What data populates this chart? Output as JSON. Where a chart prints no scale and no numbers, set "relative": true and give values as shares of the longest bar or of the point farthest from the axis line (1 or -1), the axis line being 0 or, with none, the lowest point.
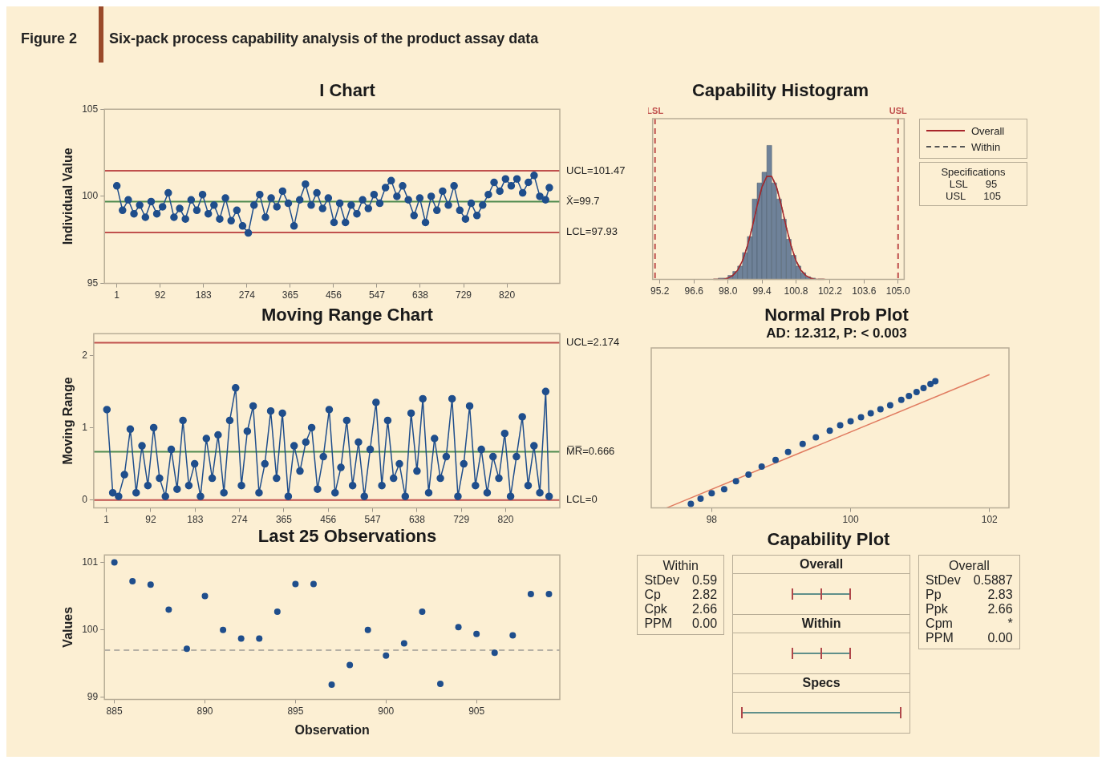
{
  "chart_data": [
    {
      "type": "line",
      "title": "I Chart",
      "ylabel": "Individual Value",
      "marker": "circle",
      "annotations": [
        "Figure 2",
        "Six-pack process capability analysis of the product assay data"
      ],
      "xlim": [
        -25,
        931
      ],
      "xticks": [
        1,
        92,
        183,
        274,
        365,
        456,
        547,
        638,
        729,
        820
      ],
      "ylim": [
        95,
        105
      ],
      "yticks": [
        95,
        100,
        105
      ],
      "ref_lines": [
        {
          "axis": "y",
          "value": 101.47,
          "label": "UCL=101.47",
          "color": "#c0504d"
        },
        {
          "axis": "y",
          "value": 99.7,
          "label": "X̄=99.7",
          "color": "#4e8a4e"
        },
        {
          "axis": "y",
          "value": 97.93,
          "label": "LCL=97.93",
          "color": "#c0504d"
        }
      ],
      "series": [
        {
          "color": "#1f4e8c",
          "x": [
            1,
            13,
            25,
            37,
            49,
            61,
            73,
            85,
            97,
            109,
            121,
            133,
            145,
            157,
            169,
            181,
            193,
            205,
            217,
            229,
            241,
            253,
            265,
            277,
            289,
            301,
            313,
            325,
            337,
            349,
            361,
            373,
            385,
            397,
            409,
            421,
            433,
            445,
            457,
            469,
            481,
            493,
            505,
            517,
            529,
            541,
            553,
            565,
            577,
            589,
            601,
            613,
            625,
            637,
            649,
            661,
            673,
            685,
            697,
            709,
            721,
            733,
            745,
            757,
            769,
            781,
            793,
            805,
            817,
            829,
            841,
            853,
            865,
            877,
            889,
            901,
            909
          ],
          "values": [
            100.6,
            99.2,
            99.8,
            99.0,
            99.5,
            98.8,
            99.7,
            99.0,
            99.4,
            100.2,
            98.8,
            99.3,
            98.7,
            99.8,
            99.2,
            100.1,
            99.0,
            99.5,
            98.7,
            99.9,
            98.6,
            99.2,
            98.3,
            97.9,
            99.5,
            100.1,
            98.8,
            99.9,
            99.4,
            100.3,
            99.6,
            98.3,
            99.8,
            100.7,
            99.5,
            100.2,
            99.3,
            99.9,
            98.5,
            99.6,
            98.5,
            99.5,
            99.0,
            99.8,
            99.3,
            100.1,
            99.6,
            100.5,
            100.9,
            100.0,
            100.6,
            99.8,
            98.9,
            99.9,
            98.5,
            100.0,
            99.2,
            100.3,
            99.5,
            100.6,
            99.2,
            98.7,
            99.6,
            98.9,
            99.5,
            100.1,
            100.8,
            100.3,
            101.0,
            100.6,
            101.0,
            100.2,
            100.8,
            101.2,
            100.0,
            99.8,
            100.5
          ]
        }
      ]
    },
    {
      "type": "histogram",
      "title": "Capability Histogram",
      "relative": true,
      "color": "#6f8299",
      "legend": "right",
      "annotations": [
        "Specifications",
        "LSL",
        "95",
        "USL",
        "105"
      ],
      "xlim": [
        94.9,
        105.25
      ],
      "xticks": [
        95.2,
        96.6,
        {
          "value": 98,
          "label": "98.0"
        },
        99.4,
        100.8,
        102.2,
        103.6,
        {
          "value": 105,
          "label": "105.0"
        }
      ],
      "bins": [
        97.6,
        97.8,
        98.0,
        98.2,
        98.4,
        98.6,
        98.8,
        99.0,
        99.2,
        99.4,
        99.6,
        99.8,
        100.0,
        100.2,
        100.4,
        100.6,
        100.8,
        101.0,
        101.2,
        101.4,
        101.6
      ],
      "values": [
        0.01,
        0.01,
        0.03,
        0.06,
        0.1,
        0.2,
        0.32,
        0.6,
        0.72,
        0.8,
        1,
        0.72,
        0.6,
        0.45,
        0.3,
        0.18,
        0.1,
        0.05,
        0.02,
        0.01
      ],
      "ref_lines": [
        {
          "axis": "x",
          "value": 95,
          "label": "LSL",
          "color": "#c0504d",
          "line_style": "dashed"
        },
        {
          "axis": "x",
          "value": 105,
          "label": "USL",
          "color": "#c0504d",
          "line_style": "dashed"
        }
      ],
      "series": [
        {
          "name": "Overall",
          "type": "line",
          "color": "#a8262b",
          "line_style": "solid",
          "x": [
            97.4,
            97.6,
            97.8,
            98.0,
            98.2,
            98.4,
            98.6,
            98.8,
            99.0,
            99.2,
            99.4,
            99.6,
            99.8,
            100.0,
            100.2,
            100.4,
            100.6,
            100.8,
            101.0,
            101.2,
            101.4,
            101.6,
            101.8,
            102.0
          ],
          "values": [
            0,
            0,
            0,
            0.01,
            0.03,
            0.07,
            0.14,
            0.25,
            0.39,
            0.55,
            0.69,
            0.77,
            0.77,
            0.69,
            0.55,
            0.39,
            0.25,
            0.14,
            0.07,
            0.03,
            0.01,
            0,
            0,
            0
          ]
        },
        {
          "name": "Within",
          "type": "line",
          "color": "#555555",
          "line_style": "dashed",
          "x": [
            97.4,
            97.6,
            97.8,
            98.0,
            98.2,
            98.4,
            98.6,
            98.8,
            99.0,
            99.2,
            99.4,
            99.6,
            99.8,
            100.0,
            100.2,
            100.4,
            100.6,
            100.8,
            101.0,
            101.2,
            101.4,
            101.6,
            101.8,
            102.0
          ],
          "values": [
            0,
            0,
            0,
            0.01,
            0.03,
            0.07,
            0.14,
            0.25,
            0.39,
            0.55,
            0.69,
            0.77,
            0.77,
            0.69,
            0.55,
            0.39,
            0.25,
            0.14,
            0.07,
            0.03,
            0.01,
            0,
            0,
            0
          ]
        }
      ]
    },
    {
      "type": "line",
      "title": "Moving Range Chart",
      "ylabel": "Moving Range",
      "marker": "circle",
      "xlim": [
        -25,
        931
      ],
      "xticks": [
        1,
        92,
        183,
        274,
        365,
        456,
        547,
        638,
        729,
        820
      ],
      "ylim": [
        -0.11,
        2.3
      ],
      "yticks": [
        0,
        1,
        2
      ],
      "ref_lines": [
        {
          "axis": "y",
          "value": 2.174,
          "label": "UCL=2.174",
          "color": "#c0504d"
        },
        {
          "axis": "y",
          "value": 0.666,
          "label": "M̅R̅=0.666",
          "color": "#4e8a4e"
        },
        {
          "axis": "y",
          "value": 0,
          "label": "LCL=0",
          "color": "#c0504d"
        }
      ],
      "series": [
        {
          "color": "#1f4e8c",
          "x": [
            2,
            14,
            26,
            38,
            50,
            62,
            74,
            86,
            98,
            110,
            122,
            134,
            146,
            158,
            170,
            182,
            194,
            206,
            218,
            230,
            242,
            254,
            266,
            278,
            290,
            302,
            314,
            326,
            338,
            350,
            362,
            374,
            386,
            398,
            410,
            422,
            434,
            446,
            458,
            470,
            482,
            494,
            506,
            518,
            530,
            542,
            554,
            566,
            578,
            590,
            602,
            614,
            626,
            638,
            650,
            662,
            674,
            686,
            698,
            710,
            722,
            734,
            746,
            758,
            770,
            782,
            794,
            806,
            818,
            830,
            842,
            854,
            866,
            878,
            890,
            902,
            909
          ],
          "values": [
            1.25,
            0.1,
            0.05,
            0.35,
            0.98,
            0.1,
            0.75,
            0.2,
            1.0,
            0.3,
            0.05,
            0.7,
            0.15,
            1.1,
            0.2,
            0.5,
            0.05,
            0.85,
            0.3,
            0.9,
            0.1,
            1.1,
            1.55,
            0.2,
            0.95,
            1.3,
            0.1,
            0.5,
            1.23,
            0.3,
            1.2,
            0.05,
            0.75,
            0.4,
            0.8,
            1.0,
            0.15,
            0.6,
            1.25,
            0.1,
            0.45,
            1.1,
            0.2,
            0.8,
            0.05,
            0.7,
            1.35,
            0.2,
            1.1,
            0.3,
            0.5,
            0.05,
            1.2,
            0.4,
            1.4,
            0.1,
            0.85,
            0.3,
            0.6,
            1.4,
            0.05,
            0.5,
            1.3,
            0.2,
            0.7,
            0.1,
            0.6,
            0.3,
            0.92,
            0.05,
            0.6,
            1.15,
            0.2,
            0.75,
            0.1,
            1.5,
            0.05
          ]
        }
      ]
    },
    {
      "type": "scatter",
      "title": "Normal Prob Plot",
      "subtitle": "AD: 12.312, P: < 0.003",
      "relative": true,
      "marker": "circle",
      "xlim": [
        97.13,
        102.28
      ],
      "xticks": [
        98,
        100,
        102
      ],
      "series": [
        {
          "color": "#1f4e8c",
          "x": [
            97.7,
            97.84,
            98.0,
            98.18,
            98.35,
            98.53,
            98.72,
            98.92,
            99.1,
            99.31,
            99.5,
            99.7,
            99.85,
            100.0,
            100.15,
            100.29,
            100.43,
            100.57,
            100.73,
            100.84,
            100.95,
            101.05,
            101.15,
            101.22
          ],
          "values": [
            0.03,
            0.07,
            0.11,
            0.14,
            0.2,
            0.25,
            0.31,
            0.36,
            0.42,
            0.48,
            0.53,
            0.58,
            0.62,
            0.65,
            0.68,
            0.71,
            0.74,
            0.77,
            0.81,
            0.84,
            0.87,
            0.9,
            0.93,
            0.95
          ]
        },
        {
          "type": "line",
          "color": "#e07a5f",
          "marker": "none",
          "x": [
            97.35,
            102.0
          ],
          "values": [
            0,
            1
          ]
        }
      ]
    },
    {
      "type": "scatter",
      "title": "Last 25 Observations",
      "xlabel": "Observation",
      "ylabel": "Values",
      "marker": "circle",
      "xlim": [
        884.45,
        909.6
      ],
      "xticks": [
        885,
        890,
        895,
        900,
        905
      ],
      "ylim": [
        98.97,
        101.11
      ],
      "yticks": [
        99,
        100,
        101
      ],
      "ref_lines": [
        {
          "axis": "y",
          "value": 99.7,
          "color": "#b5b0a5",
          "line_style": "dashed"
        }
      ],
      "series": [
        {
          "color": "#1f4e8c",
          "x": [
            885,
            886,
            887,
            888,
            889,
            890,
            891,
            892,
            893,
            894,
            895,
            896,
            897,
            898,
            899,
            900,
            901,
            902,
            903,
            904,
            905,
            906,
            907,
            908,
            909
          ],
          "values": [
            101.0,
            100.72,
            100.67,
            100.3,
            99.72,
            100.5,
            100.0,
            99.87,
            99.87,
            100.27,
            100.68,
            100.68,
            99.19,
            99.48,
            100.0,
            99.62,
            99.8,
            100.27,
            99.2,
            100.04,
            99.94,
            99.66,
            99.92,
            100.53,
            100.53
          ]
        }
      ]
    },
    {
      "type": "other",
      "title": "Capability Plot",
      "annotations": [
        "Within",
        "StDev",
        "0.59",
        "Cp",
        "2.82",
        "Cpk",
        "2.66",
        "PPM",
        "0.00",
        "Overall",
        "Within",
        "Specs",
        "Overall",
        "StDev",
        "0.5887",
        "Pp",
        "2.83",
        "Ppk",
        "2.66",
        "Cpm",
        "*",
        "PPM",
        "0.00"
      ]
    }
  ]
}
